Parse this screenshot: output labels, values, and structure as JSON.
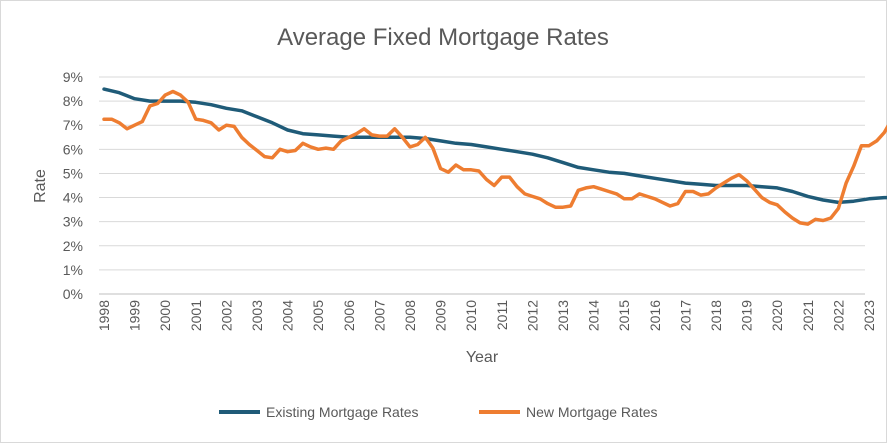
{
  "chart_data": {
    "type": "line",
    "title": "Average Fixed Mortgage Rates",
    "xlabel": "Year",
    "ylabel": "Rate",
    "xlim": [
      1998,
      2023.85
    ],
    "ylim": [
      0,
      9
    ],
    "yticks": [
      "0%",
      "1%",
      "2%",
      "3%",
      "4%",
      "5%",
      "6%",
      "7%",
      "8%",
      "9%"
    ],
    "xticks": [
      "1998",
      "1999",
      "2000",
      "2001",
      "2002",
      "2003",
      "2004",
      "2005",
      "2006",
      "2007",
      "2008",
      "2009",
      "2010",
      "2011",
      "2012",
      "2013",
      "2014",
      "2015",
      "2016",
      "2017",
      "2018",
      "2019",
      "2020",
      "2021",
      "2022",
      "2023"
    ],
    "grid": true,
    "legend_position": "bottom",
    "series": [
      {
        "name": "Existing Mortgage Rates",
        "color": "#1F5B78",
        "points": [
          [
            1998.0,
            8.5
          ],
          [
            1998.5,
            8.35
          ],
          [
            1999.0,
            8.1
          ],
          [
            1999.5,
            8.0
          ],
          [
            2000.0,
            8.0
          ],
          [
            2000.5,
            8.0
          ],
          [
            2001.0,
            7.95
          ],
          [
            2001.5,
            7.85
          ],
          [
            2002.0,
            7.7
          ],
          [
            2002.5,
            7.6
          ],
          [
            2003.0,
            7.35
          ],
          [
            2003.5,
            7.1
          ],
          [
            2004.0,
            6.8
          ],
          [
            2004.5,
            6.65
          ],
          [
            2005.0,
            6.6
          ],
          [
            2005.5,
            6.55
          ],
          [
            2006.0,
            6.5
          ],
          [
            2006.5,
            6.5
          ],
          [
            2007.0,
            6.5
          ],
          [
            2007.5,
            6.5
          ],
          [
            2008.0,
            6.5
          ],
          [
            2008.5,
            6.45
          ],
          [
            2009.0,
            6.35
          ],
          [
            2009.5,
            6.25
          ],
          [
            2010.0,
            6.2
          ],
          [
            2010.5,
            6.1
          ],
          [
            2011.0,
            6.0
          ],
          [
            2011.5,
            5.9
          ],
          [
            2012.0,
            5.8
          ],
          [
            2012.5,
            5.65
          ],
          [
            2013.0,
            5.45
          ],
          [
            2013.5,
            5.25
          ],
          [
            2014.0,
            5.15
          ],
          [
            2014.5,
            5.05
          ],
          [
            2015.0,
            5.0
          ],
          [
            2015.5,
            4.9
          ],
          [
            2016.0,
            4.8
          ],
          [
            2016.5,
            4.7
          ],
          [
            2017.0,
            4.6
          ],
          [
            2017.5,
            4.55
          ],
          [
            2018.0,
            4.5
          ],
          [
            2018.5,
            4.5
          ],
          [
            2019.0,
            4.5
          ],
          [
            2019.5,
            4.45
          ],
          [
            2020.0,
            4.4
          ],
          [
            2020.5,
            4.25
          ],
          [
            2021.0,
            4.05
          ],
          [
            2021.5,
            3.9
          ],
          [
            2022.0,
            3.8
          ],
          [
            2022.5,
            3.85
          ],
          [
            2023.0,
            3.95
          ],
          [
            2023.5,
            4.0
          ],
          [
            2023.85,
            4.0
          ]
        ]
      },
      {
        "name": "New Mortgage Rates",
        "color": "#EE7D31",
        "points": [
          [
            1998.0,
            7.25
          ],
          [
            1998.25,
            7.25
          ],
          [
            1998.5,
            7.1
          ],
          [
            1998.75,
            6.85
          ],
          [
            1999.0,
            7.0
          ],
          [
            1999.25,
            7.15
          ],
          [
            1999.5,
            7.8
          ],
          [
            1999.75,
            7.9
          ],
          [
            2000.0,
            8.25
          ],
          [
            2000.25,
            8.4
          ],
          [
            2000.5,
            8.25
          ],
          [
            2000.75,
            7.95
          ],
          [
            2001.0,
            7.25
          ],
          [
            2001.25,
            7.2
          ],
          [
            2001.5,
            7.1
          ],
          [
            2001.75,
            6.8
          ],
          [
            2002.0,
            7.0
          ],
          [
            2002.25,
            6.95
          ],
          [
            2002.5,
            6.5
          ],
          [
            2002.75,
            6.2
          ],
          [
            2003.0,
            5.95
          ],
          [
            2003.25,
            5.7
          ],
          [
            2003.5,
            5.65
          ],
          [
            2003.75,
            6.0
          ],
          [
            2004.0,
            5.9
          ],
          [
            2004.25,
            5.95
          ],
          [
            2004.5,
            6.25
          ],
          [
            2004.75,
            6.1
          ],
          [
            2005.0,
            6.0
          ],
          [
            2005.25,
            6.05
          ],
          [
            2005.5,
            6.0
          ],
          [
            2005.75,
            6.35
          ],
          [
            2006.0,
            6.5
          ],
          [
            2006.25,
            6.65
          ],
          [
            2006.5,
            6.85
          ],
          [
            2006.75,
            6.6
          ],
          [
            2007.0,
            6.55
          ],
          [
            2007.25,
            6.55
          ],
          [
            2007.5,
            6.85
          ],
          [
            2007.75,
            6.5
          ],
          [
            2008.0,
            6.1
          ],
          [
            2008.25,
            6.2
          ],
          [
            2008.5,
            6.5
          ],
          [
            2008.75,
            6.05
          ],
          [
            2009.0,
            5.2
          ],
          [
            2009.25,
            5.05
          ],
          [
            2009.5,
            5.35
          ],
          [
            2009.75,
            5.15
          ],
          [
            2010.0,
            5.15
          ],
          [
            2010.25,
            5.1
          ],
          [
            2010.5,
            4.75
          ],
          [
            2010.75,
            4.5
          ],
          [
            2011.0,
            4.85
          ],
          [
            2011.25,
            4.85
          ],
          [
            2011.5,
            4.45
          ],
          [
            2011.75,
            4.15
          ],
          [
            2012.0,
            4.05
          ],
          [
            2012.25,
            3.95
          ],
          [
            2012.5,
            3.75
          ],
          [
            2012.75,
            3.6
          ],
          [
            2013.0,
            3.6
          ],
          [
            2013.25,
            3.65
          ],
          [
            2013.5,
            4.3
          ],
          [
            2013.75,
            4.4
          ],
          [
            2014.0,
            4.45
          ],
          [
            2014.25,
            4.35
          ],
          [
            2014.5,
            4.25
          ],
          [
            2014.75,
            4.15
          ],
          [
            2015.0,
            3.95
          ],
          [
            2015.25,
            3.95
          ],
          [
            2015.5,
            4.15
          ],
          [
            2015.75,
            4.05
          ],
          [
            2016.0,
            3.95
          ],
          [
            2016.25,
            3.8
          ],
          [
            2016.5,
            3.65
          ],
          [
            2016.75,
            3.75
          ],
          [
            2017.0,
            4.25
          ],
          [
            2017.25,
            4.25
          ],
          [
            2017.5,
            4.1
          ],
          [
            2017.75,
            4.15
          ],
          [
            2018.0,
            4.4
          ],
          [
            2018.25,
            4.6
          ],
          [
            2018.5,
            4.8
          ],
          [
            2018.75,
            4.95
          ],
          [
            2019.0,
            4.7
          ],
          [
            2019.25,
            4.35
          ],
          [
            2019.5,
            4.0
          ],
          [
            2019.75,
            3.8
          ],
          [
            2020.0,
            3.7
          ],
          [
            2020.25,
            3.4
          ],
          [
            2020.5,
            3.15
          ],
          [
            2020.75,
            2.95
          ],
          [
            2021.0,
            2.9
          ],
          [
            2021.25,
            3.1
          ],
          [
            2021.5,
            3.05
          ],
          [
            2021.75,
            3.15
          ],
          [
            2022.0,
            3.55
          ],
          [
            2022.25,
            4.6
          ],
          [
            2022.5,
            5.3
          ],
          [
            2022.75,
            6.15
          ],
          [
            2023.0,
            6.15
          ],
          [
            2023.25,
            6.35
          ],
          [
            2023.5,
            6.7
          ],
          [
            2023.75,
            7.25
          ]
        ]
      }
    ]
  }
}
